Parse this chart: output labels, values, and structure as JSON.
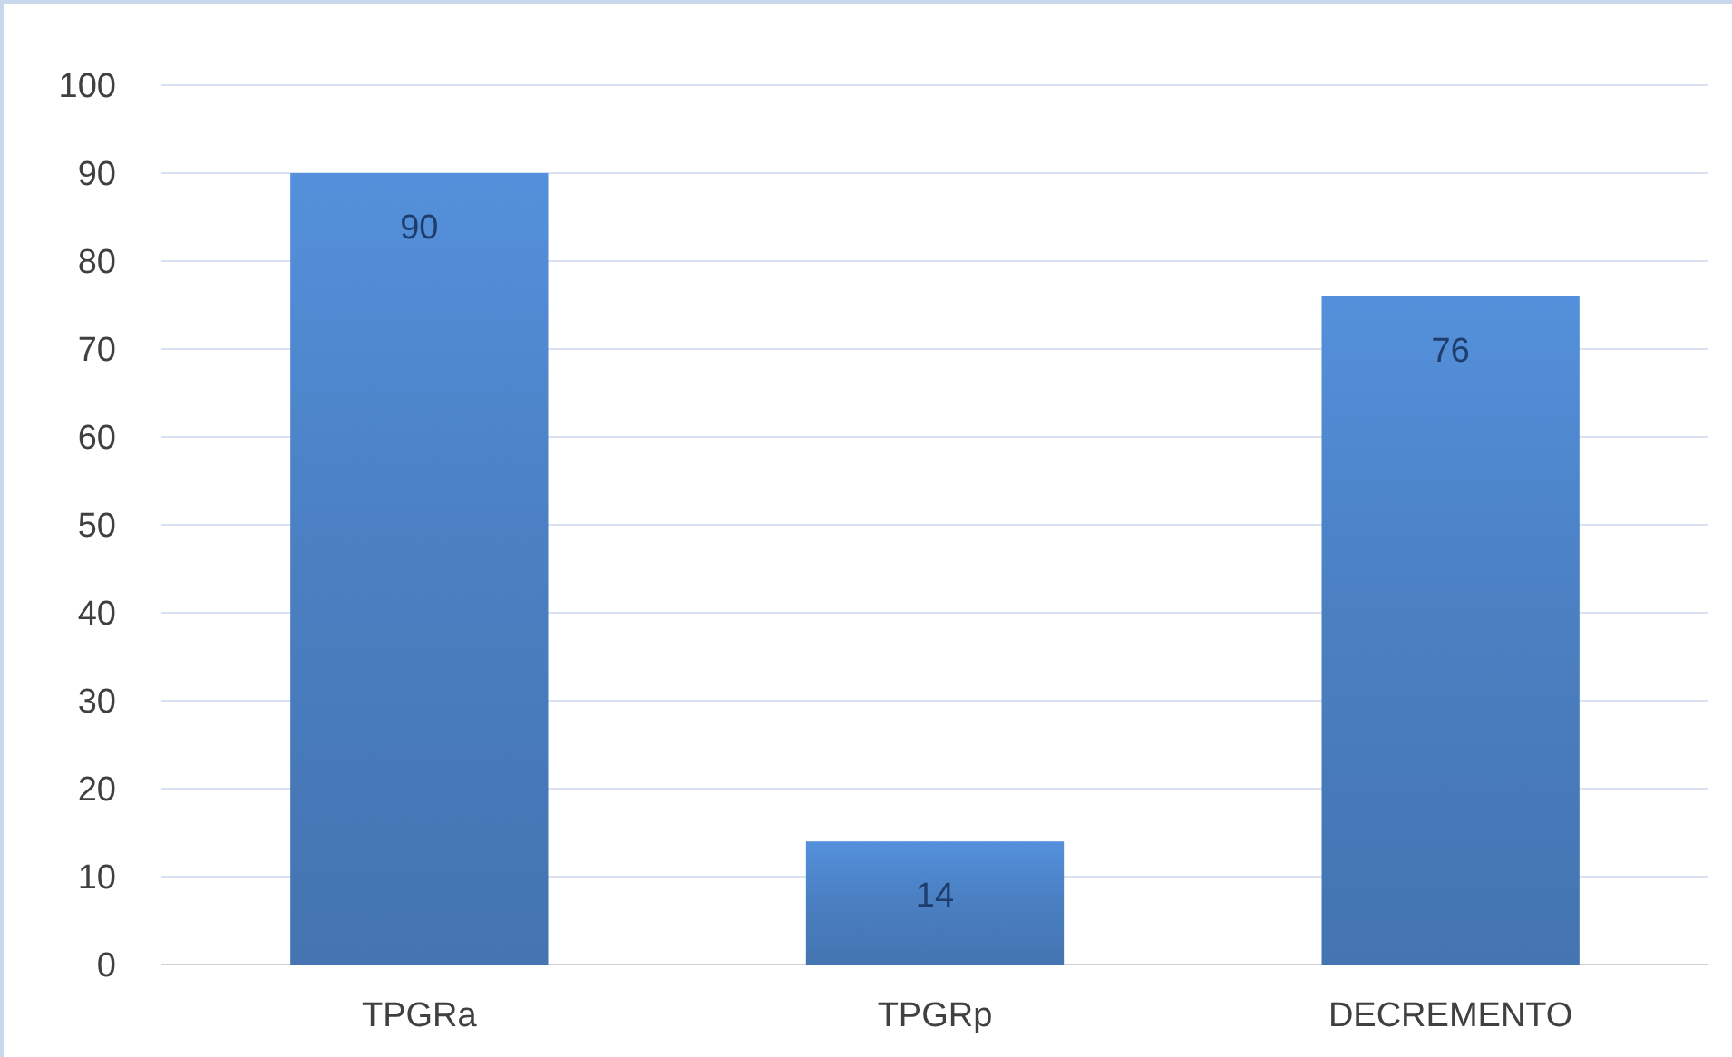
{
  "chart_data": {
    "type": "bar",
    "categories": [
      "TPGRa",
      "TPGRp",
      "DECREMENTO"
    ],
    "values": [
      90,
      14,
      76
    ],
    "color": "#4a7fc1",
    "ylim": [
      0,
      100
    ],
    "yticks": [
      0,
      10,
      20,
      30,
      40,
      50,
      60,
      70,
      80,
      90,
      100
    ],
    "grid": "y",
    "data_labels": true
  }
}
